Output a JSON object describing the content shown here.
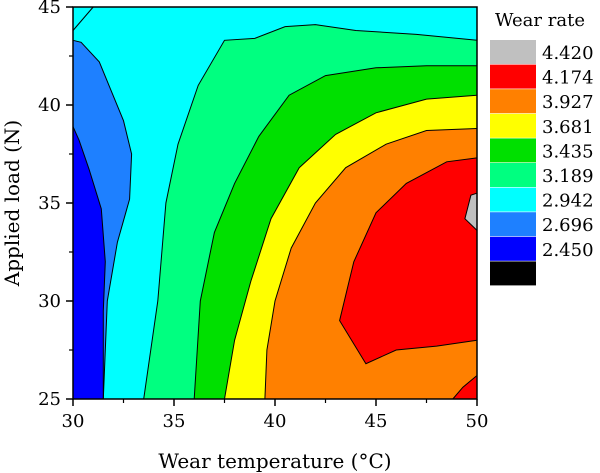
{
  "chart_data": {
    "type": "contour",
    "title": "",
    "xlabel": "Wear temperature (°C)",
    "ylabel": "Applied load (N)",
    "xlim": [
      30,
      50
    ],
    "ylim": [
      25,
      45
    ],
    "xticks": [
      "30",
      "35",
      "40",
      "45",
      "50"
    ],
    "yticks": [
      "25",
      "30",
      "35",
      "40",
      "45"
    ],
    "grid": false,
    "legend": {
      "title": "Wear rate",
      "placement": "right",
      "levels": [
        {
          "label": "4.420",
          "color": "#c0c0c0"
        },
        {
          "label": "4.174",
          "color": "#ff0000"
        },
        {
          "label": "3.927",
          "color": "#ff8000"
        },
        {
          "label": "3.681",
          "color": "#ffff00"
        },
        {
          "label": "3.435",
          "color": "#00e000"
        },
        {
          "label": "3.189",
          "color": "#00ff80"
        },
        {
          "label": "2.942",
          "color": "#00ffff"
        },
        {
          "label": "2.696",
          "color": "#1e80ff"
        },
        {
          "label": "2.450",
          "color": "#0000ff"
        },
        {
          "label": "",
          "color": "#000000"
        }
      ]
    },
    "regions": [
      {
        "level": "2.942",
        "color": "#00ffff",
        "points": [
          [
            30,
            25
          ],
          [
            50,
            25
          ],
          [
            50,
            45
          ],
          [
            30,
            45
          ]
        ]
      },
      {
        "level": "3.189",
        "color": "#00ff80",
        "points": [
          [
            33.5,
            25
          ],
          [
            34.2,
            30
          ],
          [
            34.6,
            35
          ],
          [
            35.2,
            38
          ],
          [
            36.2,
            41
          ],
          [
            37.5,
            43.3
          ],
          [
            39,
            43.4
          ],
          [
            40.5,
            44
          ],
          [
            42,
            44.1
          ],
          [
            44,
            43.8
          ],
          [
            47,
            43.6
          ],
          [
            50,
            43.3
          ],
          [
            50,
            25
          ]
        ]
      },
      {
        "level": "3.435",
        "color": "#00e000",
        "points": [
          [
            36,
            25
          ],
          [
            36.3,
            30
          ],
          [
            37,
            33.5
          ],
          [
            38,
            36
          ],
          [
            39.2,
            38.4
          ],
          [
            40.7,
            40.5
          ],
          [
            42.5,
            41.5
          ],
          [
            45,
            41.9
          ],
          [
            47.5,
            42
          ],
          [
            50,
            42
          ],
          [
            50,
            25
          ]
        ]
      },
      {
        "level": "3.681",
        "color": "#ffff00",
        "points": [
          [
            37.5,
            25
          ],
          [
            38,
            28
          ],
          [
            38.8,
            31
          ],
          [
            39.8,
            34.2
          ],
          [
            41.2,
            36.8
          ],
          [
            43,
            38.5
          ],
          [
            45,
            39.6
          ],
          [
            47.5,
            40.3
          ],
          [
            50,
            40.5
          ],
          [
            50,
            25
          ]
        ]
      },
      {
        "level": "3.927",
        "color": "#ff8000",
        "points": [
          [
            39.5,
            25
          ],
          [
            39.6,
            27.5
          ],
          [
            40,
            30
          ],
          [
            40.8,
            32.7
          ],
          [
            42,
            35
          ],
          [
            43.5,
            36.8
          ],
          [
            45.5,
            38
          ],
          [
            47.5,
            38.7
          ],
          [
            50,
            38.8
          ],
          [
            50,
            25
          ]
        ]
      },
      {
        "level": "4.174",
        "color": "#ff0000",
        "points": [
          [
            44.5,
            26.8
          ],
          [
            46,
            27.5
          ],
          [
            48,
            27.7
          ],
          [
            50,
            28
          ],
          [
            50,
            37.3
          ],
          [
            48.5,
            37.1
          ],
          [
            46.5,
            36
          ],
          [
            45,
            34.5
          ],
          [
            43.9,
            32
          ],
          [
            43.2,
            29
          ],
          [
            44.5,
            26.8
          ]
        ]
      },
      {
        "level": "4.420",
        "color": "#c0c0c0",
        "points": [
          [
            50,
            33.6
          ],
          [
            49.4,
            34.2
          ],
          [
            49.7,
            35.4
          ],
          [
            50,
            35.5
          ]
        ]
      },
      {
        "level": "4.174",
        "color": "#ff0000",
        "points": [
          [
            48.8,
            25
          ],
          [
            50,
            25
          ],
          [
            50,
            26.2
          ],
          [
            49.3,
            25.6
          ]
        ]
      },
      {
        "level": "2.696",
        "color": "#1e80ff",
        "points": [
          [
            30,
            25
          ],
          [
            31.5,
            25
          ],
          [
            31.7,
            30
          ],
          [
            32.2,
            33
          ],
          [
            32.8,
            35.2
          ],
          [
            32.9,
            37.5
          ],
          [
            32.5,
            39.2
          ],
          [
            31.9,
            40.7
          ],
          [
            31.3,
            42.2
          ],
          [
            30.4,
            43.2
          ],
          [
            30,
            43.3
          ]
        ]
      },
      {
        "level": "2.450",
        "color": "#0000ff",
        "points": [
          [
            30,
            25
          ],
          [
            31.5,
            25
          ],
          [
            31.5,
            29.5
          ],
          [
            31.6,
            32
          ],
          [
            31.4,
            34.7
          ],
          [
            30.8,
            36.7
          ],
          [
            30.3,
            38.2
          ],
          [
            30,
            38.9
          ]
        ]
      },
      {
        "level": "2.942",
        "color": "#00ffff",
        "points": [
          [
            30,
            43.8
          ],
          [
            31,
            45
          ],
          [
            30,
            45
          ]
        ]
      }
    ],
    "boundaries": [
      [
        [
          33.5,
          25
        ],
        [
          34.2,
          30
        ],
        [
          34.6,
          35
        ],
        [
          35.2,
          38
        ],
        [
          36.2,
          41
        ],
        [
          37.5,
          43.3
        ],
        [
          39,
          43.4
        ],
        [
          40.5,
          44
        ],
        [
          42,
          44.1
        ],
        [
          44,
          43.8
        ],
        [
          47,
          43.6
        ],
        [
          50,
          43.3
        ]
      ],
      [
        [
          36,
          25
        ],
        [
          36.3,
          30
        ],
        [
          37,
          33.5
        ],
        [
          38,
          36
        ],
        [
          39.2,
          38.4
        ],
        [
          40.7,
          40.5
        ],
        [
          42.5,
          41.5
        ],
        [
          45,
          41.9
        ],
        [
          47.5,
          42
        ],
        [
          50,
          42
        ]
      ],
      [
        [
          37.5,
          25
        ],
        [
          38,
          28
        ],
        [
          38.8,
          31
        ],
        [
          39.8,
          34.2
        ],
        [
          41.2,
          36.8
        ],
        [
          43,
          38.5
        ],
        [
          45,
          39.6
        ],
        [
          47.5,
          40.3
        ],
        [
          50,
          40.5
        ]
      ],
      [
        [
          39.5,
          25
        ],
        [
          39.6,
          27.5
        ],
        [
          40,
          30
        ],
        [
          40.8,
          32.7
        ],
        [
          42,
          35
        ],
        [
          43.5,
          36.8
        ],
        [
          45.5,
          38
        ],
        [
          47.5,
          38.7
        ],
        [
          50,
          38.8
        ]
      ],
      [
        [
          50,
          28
        ],
        [
          48,
          27.7
        ],
        [
          46,
          27.5
        ],
        [
          44.5,
          26.8
        ],
        [
          43.2,
          29
        ],
        [
          43.9,
          32
        ],
        [
          45,
          34.5
        ],
        [
          46.5,
          36
        ],
        [
          48.5,
          37.1
        ],
        [
          50,
          37.3
        ]
      ],
      [
        [
          50,
          33.6
        ],
        [
          49.4,
          34.2
        ],
        [
          49.7,
          35.4
        ],
        [
          50,
          35.5
        ]
      ],
      [
        [
          48.8,
          25
        ],
        [
          49.3,
          25.6
        ],
        [
          50,
          26.2
        ]
      ],
      [
        [
          31.5,
          25
        ],
        [
          31.7,
          30
        ],
        [
          32.2,
          33
        ],
        [
          32.8,
          35.2
        ],
        [
          32.9,
          37.5
        ],
        [
          32.5,
          39.2
        ],
        [
          31.9,
          40.7
        ],
        [
          31.3,
          42.2
        ],
        [
          30.4,
          43.2
        ],
        [
          30,
          43.3
        ]
      ],
      [
        [
          31.5,
          25
        ],
        [
          31.5,
          29.5
        ],
        [
          31.6,
          32
        ],
        [
          31.4,
          34.7
        ],
        [
          30.8,
          36.7
        ],
        [
          30.3,
          38.2
        ],
        [
          30,
          38.9
        ]
      ],
      [
        [
          30,
          43.8
        ],
        [
          31,
          45
        ]
      ]
    ]
  }
}
